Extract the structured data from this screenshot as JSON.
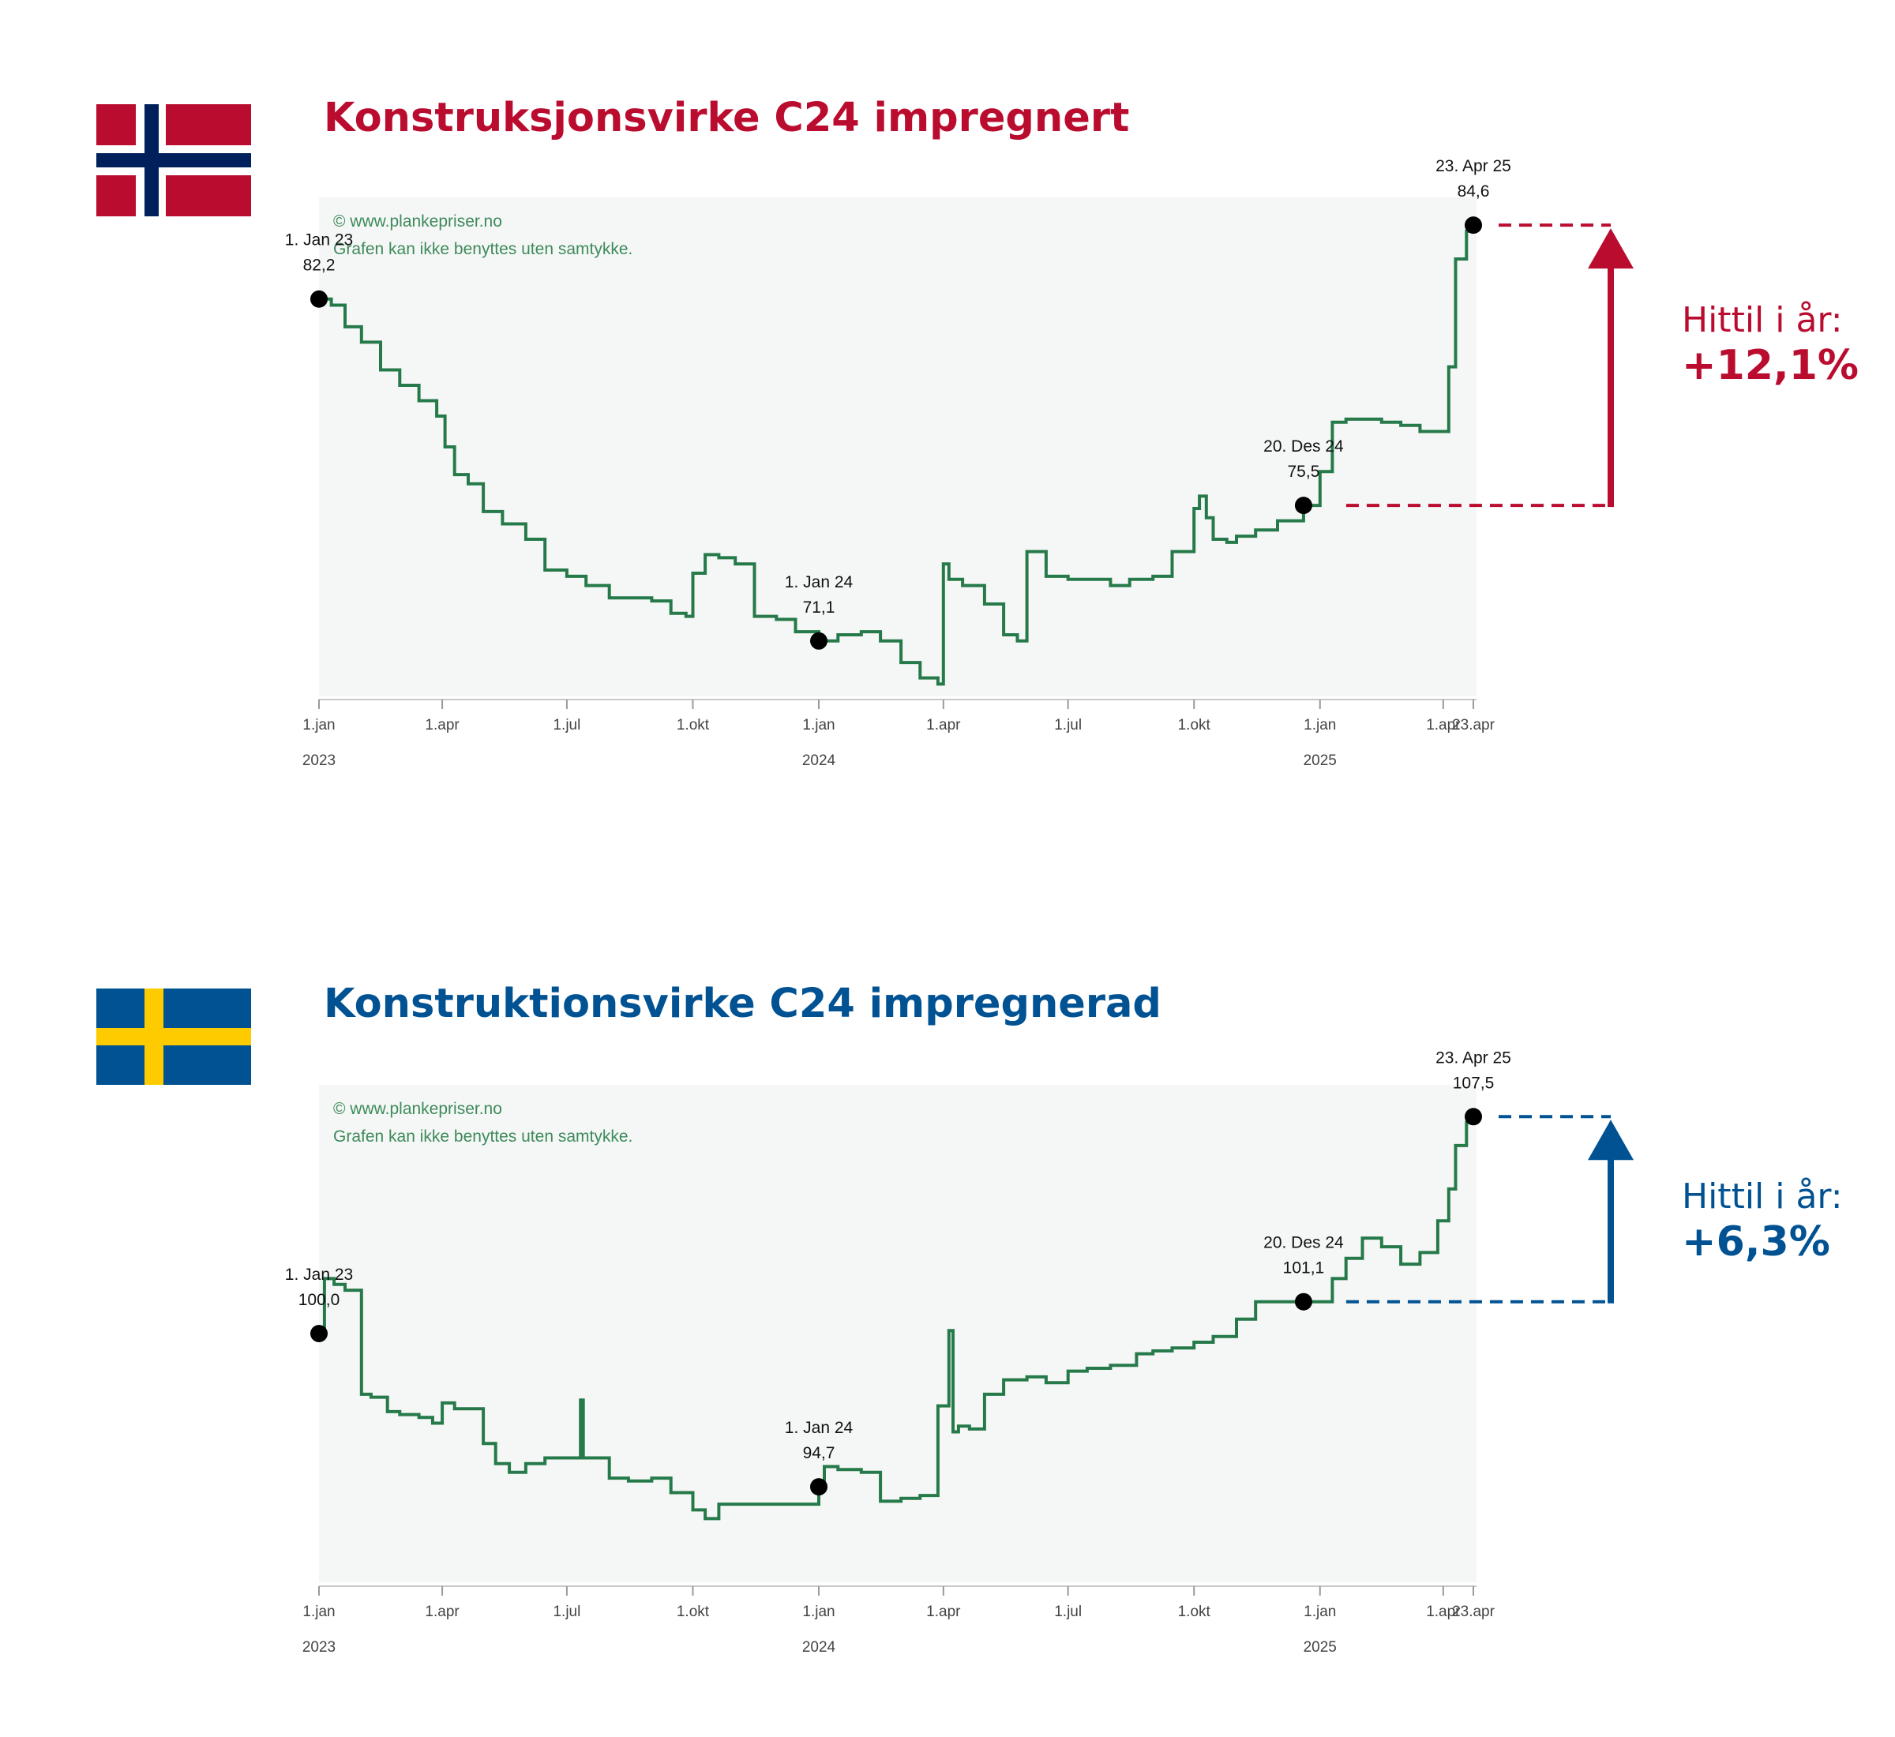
{
  "watermark": {
    "line1": "© www.plankepriser.no",
    "line2": "Grafen kan ikke benyttes uten samtykke."
  },
  "colors": {
    "line": "#267a4a",
    "plot_bg": "#f5f7f6",
    "norway_red": "#ba0c2f",
    "norway_blue": "#00205b",
    "sweden_blue": "#005293",
    "sweden_yellow": "#fecb00"
  },
  "charts": [
    {
      "flag": "norway-flag",
      "title": "Konstruksjonsvirke C24 impregnert",
      "accent_color": "#ba0c2f",
      "hittil_label": "Hittil i år:",
      "hittil_value": "+12,1%",
      "annotations": [
        {
          "date_label": "1. Jan 23",
          "value_label": "82,2"
        },
        {
          "date_label": "1. Jan 24",
          "value_label": "71,1"
        },
        {
          "date_label": "20. Des 24",
          "value_label": "75,5"
        },
        {
          "date_label": "23. Apr 25",
          "value_label": "84,6"
        }
      ]
    },
    {
      "flag": "sweden-flag",
      "title": "Konstruktionsvirke C24 impregnerad",
      "accent_color": "#005293",
      "hittil_label": "Hittil i år:",
      "hittil_value": "+6,3%",
      "annotations": [
        {
          "date_label": "1. Jan 23",
          "value_label": "100,0"
        },
        {
          "date_label": "1. Jan 24",
          "value_label": "94,7"
        },
        {
          "date_label": "20. Des 24",
          "value_label": "101,1"
        },
        {
          "date_label": "23. Apr 25",
          "value_label": "107,5"
        }
      ]
    }
  ],
  "axis": {
    "ticks": [
      "1.jan",
      "1.apr",
      "1.jul",
      "1.okt",
      "1.jan",
      "1.apr",
      "1.jul",
      "1.okt",
      "1.jan",
      "1.apr",
      "23.apr"
    ],
    "years": [
      "2023",
      "2024",
      "2025"
    ]
  },
  "chart_data": [
    {
      "type": "line",
      "title": "Konstruksjonsvirke C24 impregnert",
      "x_range": [
        "2023-01-01",
        "2025-04-23"
      ],
      "ylim": [
        69.3,
        85.5
      ],
      "series": [
        {
          "x": [
            "2023-01-01",
            "2023-01-10",
            "2023-01-20",
            "2023-02-01",
            "2023-02-15",
            "2023-03-01",
            "2023-03-15",
            "2023-03-28",
            "2023-04-03",
            "2023-04-10",
            "2023-04-20",
            "2023-05-01",
            "2023-05-15",
            "2023-06-01",
            "2023-06-15",
            "2023-07-01",
            "2023-07-15",
            "2023-08-01",
            "2023-08-15",
            "2023-09-01",
            "2023-09-15",
            "2023-09-26",
            "2023-10-01",
            "2023-10-10",
            "2023-10-20",
            "2023-11-01",
            "2023-11-15",
            "2023-12-01",
            "2023-12-15",
            "2024-01-01",
            "2024-01-15",
            "2024-02-01",
            "2024-02-15",
            "2024-03-01",
            "2024-03-15",
            "2024-03-28",
            "2024-04-01",
            "2024-04-05",
            "2024-04-15",
            "2024-05-01",
            "2024-05-15",
            "2024-05-25",
            "2024-06-01",
            "2024-06-15",
            "2024-07-01",
            "2024-07-15",
            "2024-08-01",
            "2024-08-15",
            "2024-09-01",
            "2024-09-15",
            "2024-10-01",
            "2024-10-05",
            "2024-10-10",
            "2024-10-15",
            "2024-10-25",
            "2024-11-01",
            "2024-11-15",
            "2024-12-01",
            "2024-12-20",
            "2025-01-01",
            "2025-01-10",
            "2025-01-20",
            "2025-02-01",
            "2025-02-15",
            "2025-03-01",
            "2025-03-15",
            "2025-03-28",
            "2025-04-05",
            "2025-04-10",
            "2025-04-18",
            "2025-04-23"
          ],
          "y": [
            82.2,
            82.0,
            81.3,
            80.8,
            79.9,
            79.4,
            78.9,
            78.4,
            77.4,
            76.5,
            76.2,
            75.3,
            74.9,
            74.4,
            73.4,
            73.2,
            72.9,
            72.5,
            72.5,
            72.4,
            72.0,
            71.9,
            73.3,
            73.9,
            73.8,
            73.6,
            71.9,
            71.8,
            71.4,
            71.1,
            71.3,
            71.4,
            71.1,
            70.4,
            69.9,
            69.7,
            73.6,
            73.1,
            72.9,
            72.3,
            71.3,
            71.1,
            74.0,
            73.2,
            73.1,
            73.1,
            72.9,
            73.1,
            73.2,
            74.0,
            75.4,
            75.8,
            75.1,
            74.4,
            74.3,
            74.5,
            74.7,
            75.0,
            75.5,
            76.6,
            78.2,
            78.3,
            78.3,
            78.2,
            78.1,
            77.9,
            77.9,
            80.0,
            83.5,
            84.4,
            84.6
          ]
        }
      ]
    },
    {
      "type": "line",
      "title": "Konstruktionsvirke C24 impregnerad",
      "x_range": [
        "2023-01-01",
        "2025-04-23"
      ],
      "ylim": [
        91.4,
        108.6
      ],
      "series": [
        {
          "x": [
            "2023-01-01",
            "2023-01-05",
            "2023-01-12",
            "2023-01-20",
            "2023-02-01",
            "2023-02-08",
            "2023-02-20",
            "2023-03-01",
            "2023-03-15",
            "2023-03-25",
            "2023-04-01",
            "2023-04-10",
            "2023-04-20",
            "2023-05-01",
            "2023-05-10",
            "2023-05-20",
            "2023-06-01",
            "2023-06-15",
            "2023-07-01",
            "2023-07-10",
            "2023-07-11",
            "2023-07-13",
            "2023-08-01",
            "2023-08-15",
            "2023-09-01",
            "2023-09-15",
            "2023-10-01",
            "2023-10-10",
            "2023-10-20",
            "2024-01-01",
            "2024-01-05",
            "2024-01-15",
            "2024-02-01",
            "2024-02-15",
            "2024-03-01",
            "2024-03-15",
            "2024-03-28",
            "2024-04-05",
            "2024-04-08",
            "2024-04-12",
            "2024-04-20",
            "2024-05-01",
            "2024-05-15",
            "2024-06-01",
            "2024-06-15",
            "2024-07-01",
            "2024-07-15",
            "2024-08-01",
            "2024-08-20",
            "2024-09-01",
            "2024-09-15",
            "2024-10-01",
            "2024-10-15",
            "2024-11-01",
            "2024-11-15",
            "2024-12-01",
            "2024-12-20",
            "2025-01-01",
            "2025-01-10",
            "2025-01-20",
            "2025-02-01",
            "2025-02-15",
            "2025-03-01",
            "2025-03-15",
            "2025-03-28",
            "2025-04-05",
            "2025-04-10",
            "2025-04-18",
            "2025-04-23"
          ],
          "y": [
            100.0,
            101.9,
            101.7,
            101.5,
            97.9,
            97.8,
            97.3,
            97.2,
            97.1,
            96.9,
            97.6,
            97.4,
            97.4,
            96.2,
            95.5,
            95.2,
            95.5,
            95.7,
            95.7,
            95.7,
            97.7,
            95.7,
            95.0,
            94.9,
            95.0,
            94.5,
            93.9,
            93.6,
            94.1,
            94.7,
            95.4,
            95.3,
            95.2,
            94.2,
            94.3,
            94.4,
            97.5,
            100.1,
            96.6,
            96.8,
            96.7,
            97.9,
            98.4,
            98.5,
            98.3,
            98.7,
            98.8,
            98.9,
            99.3,
            99.4,
            99.5,
            99.7,
            99.9,
            100.5,
            101.1,
            101.1,
            101.1,
            101.1,
            101.9,
            102.6,
            103.3,
            103.0,
            102.4,
            102.8,
            103.9,
            105.0,
            106.5,
            107.3,
            107.5
          ]
        }
      ]
    }
  ]
}
